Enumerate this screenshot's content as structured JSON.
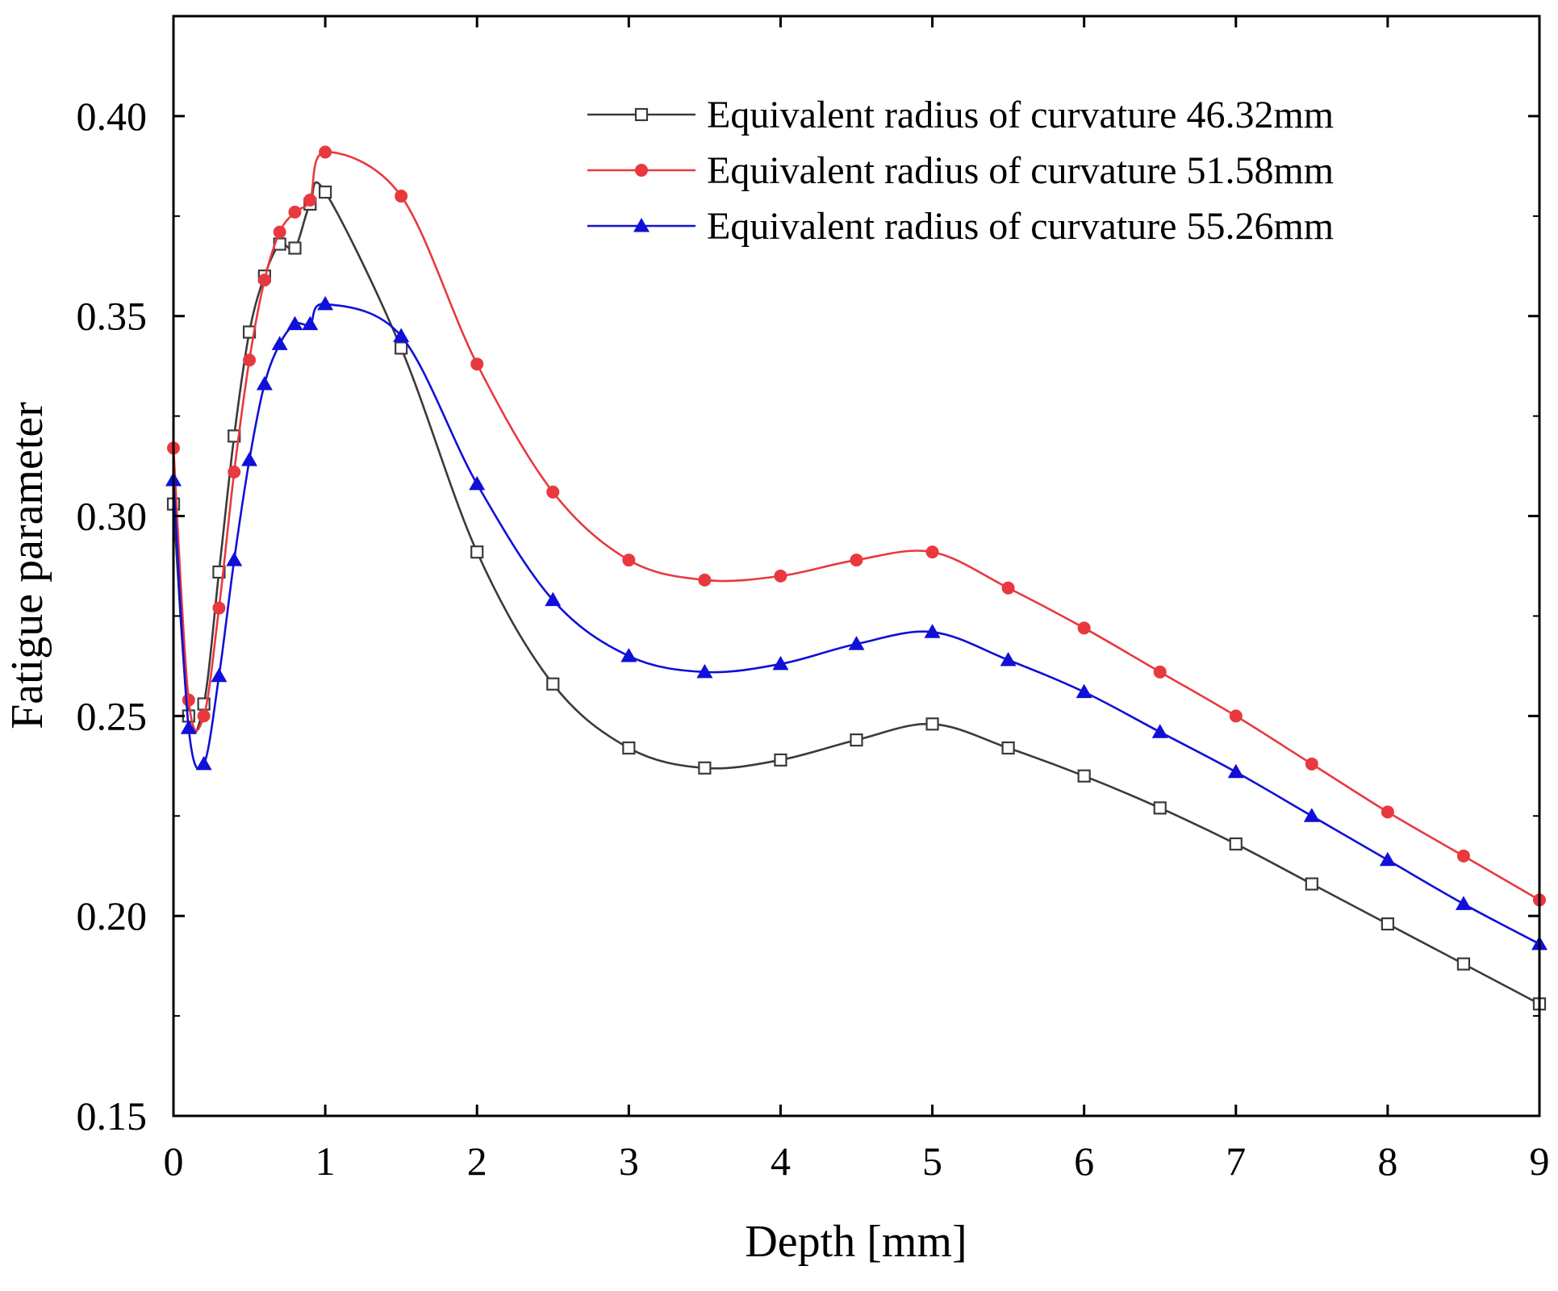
{
  "chart_data": {
    "type": "line",
    "xlabel": "Depth [mm]",
    "ylabel": "Fatigue parameter",
    "xlim": [
      0,
      9
    ],
    "ylim": [
      0.15,
      0.425
    ],
    "x_ticks": [
      0,
      1,
      2,
      3,
      4,
      5,
      6,
      7,
      8,
      9
    ],
    "x_tick_labels": [
      "0",
      "1",
      "2",
      "3",
      "4",
      "5",
      "6",
      "7",
      "8",
      "9"
    ],
    "y_ticks": [
      0.15,
      0.2,
      0.25,
      0.3,
      0.35,
      0.4
    ],
    "y_tick_labels": [
      "0.15",
      "0.20",
      "0.25",
      "0.30",
      "0.35",
      "0.40"
    ],
    "y_minor_ticks": [
      0.175,
      0.225,
      0.275,
      0.325,
      0.375
    ],
    "grid": false,
    "legend_position": "top-right",
    "series": [
      {
        "name": "Equivalent radius of curvature 46.32mm",
        "color": "#3a3a3a",
        "marker": "open-square",
        "x": [
          0,
          0.1,
          0.2,
          0.3,
          0.4,
          0.5,
          0.6,
          0.7,
          0.8,
          0.9,
          1.0,
          1.5,
          2.0,
          2.5,
          3.0,
          3.5,
          4.0,
          4.5,
          5.0,
          5.5,
          6.0,
          6.5,
          7.0,
          7.5,
          8.0,
          8.5,
          9.0
        ],
        "y": [
          0.303,
          0.25,
          0.253,
          0.286,
          0.32,
          0.346,
          0.36,
          0.368,
          0.367,
          0.378,
          0.381,
          0.342,
          0.291,
          0.258,
          0.242,
          0.237,
          0.239,
          0.244,
          0.248,
          0.242,
          0.235,
          0.227,
          0.218,
          0.208,
          0.198,
          0.188,
          0.178
        ]
      },
      {
        "name": "Equivalent radius of curvature 51.58mm",
        "color": "#e8393f",
        "marker": "filled-circle",
        "x": [
          0,
          0.1,
          0.2,
          0.3,
          0.4,
          0.5,
          0.6,
          0.7,
          0.8,
          0.9,
          1.0,
          1.5,
          2.0,
          2.5,
          3.0,
          3.5,
          4.0,
          4.5,
          5.0,
          5.5,
          6.0,
          6.5,
          7.0,
          7.5,
          8.0,
          8.5,
          9.0
        ],
        "y": [
          0.317,
          0.254,
          0.25,
          0.277,
          0.311,
          0.339,
          0.359,
          0.371,
          0.376,
          0.379,
          0.391,
          0.38,
          0.338,
          0.306,
          0.289,
          0.284,
          0.285,
          0.289,
          0.291,
          0.282,
          0.272,
          0.261,
          0.25,
          0.238,
          0.226,
          0.215,
          0.204
        ]
      },
      {
        "name": "Equivalent radius of curvature 55.26mm",
        "color": "#1010d8",
        "marker": "filled-triangle",
        "x": [
          0,
          0.1,
          0.2,
          0.3,
          0.4,
          0.5,
          0.6,
          0.7,
          0.8,
          0.9,
          1.0,
          1.5,
          2.0,
          2.5,
          3.0,
          3.5,
          4.0,
          4.5,
          5.0,
          5.5,
          6.0,
          6.5,
          7.0,
          7.5,
          8.0,
          8.5,
          9.0
        ],
        "y": [
          0.309,
          0.247,
          0.238,
          0.26,
          0.289,
          0.314,
          0.333,
          0.343,
          0.348,
          0.348,
          0.353,
          0.345,
          0.308,
          0.279,
          0.265,
          0.261,
          0.263,
          0.268,
          0.271,
          0.264,
          0.256,
          0.246,
          0.236,
          0.225,
          0.214,
          0.203,
          0.193
        ]
      }
    ]
  }
}
